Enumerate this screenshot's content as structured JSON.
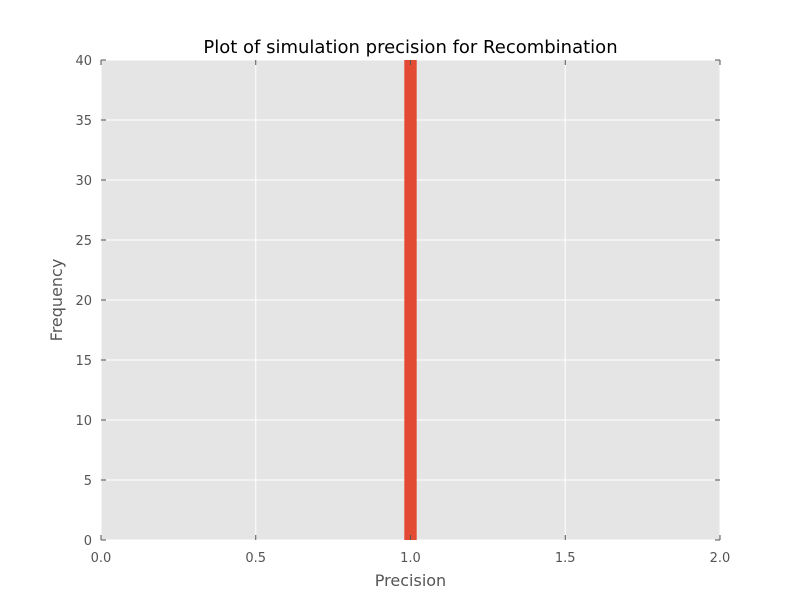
{
  "chart_data": {
    "type": "bar",
    "title": "Plot of simulation precision for Recombination",
    "xlabel": "Precision",
    "ylabel": "Frequency",
    "xlim": [
      0.0,
      2.0
    ],
    "ylim": [
      0,
      40
    ],
    "x_ticks": [
      "0.0",
      "0.5",
      "1.0",
      "1.5",
      "2.0"
    ],
    "y_ticks": [
      "0",
      "5",
      "10",
      "15",
      "20",
      "25",
      "30",
      "35",
      "40"
    ],
    "grid": true,
    "bars": [
      {
        "x_start": 0.98,
        "x_end": 1.02,
        "value": 40
      }
    ],
    "colors": {
      "plot_background": "#e5e5e5",
      "grid": "#ffffff",
      "bar": "#e24a33",
      "tick": "#555555"
    }
  }
}
